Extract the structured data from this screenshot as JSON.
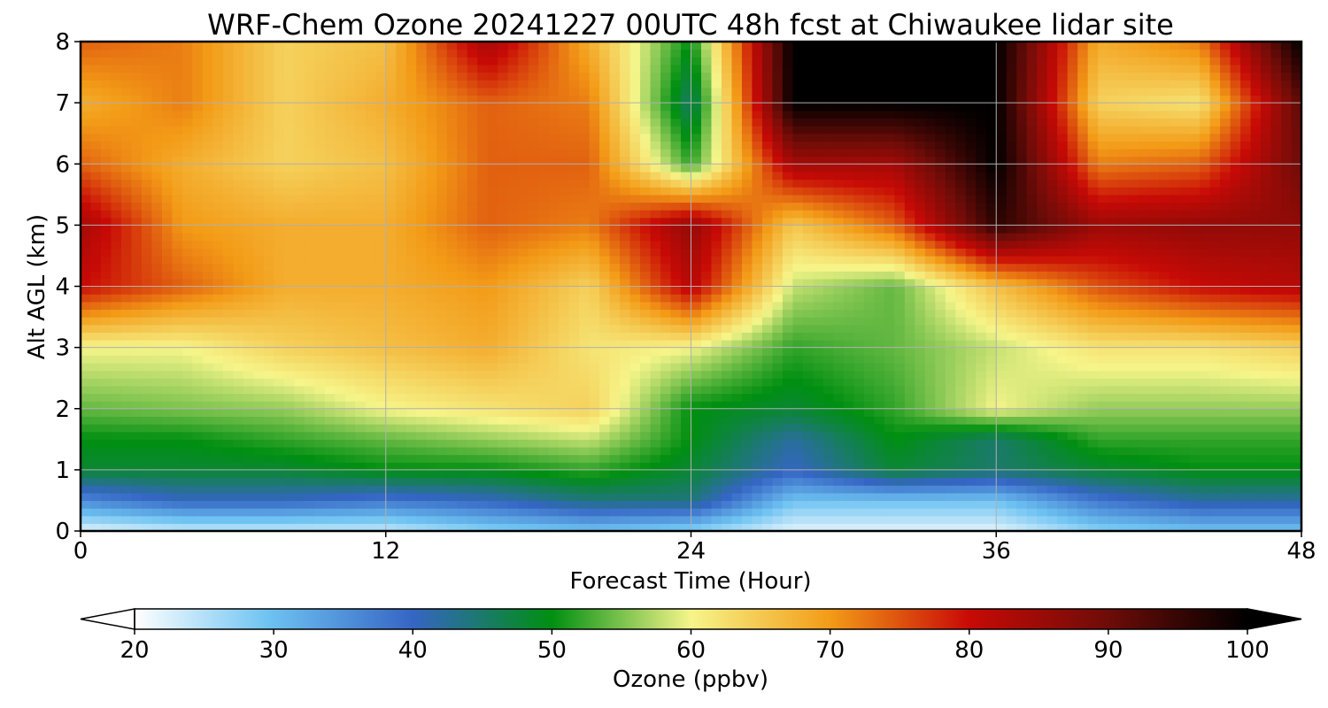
{
  "chart_data": {
    "type": "heatmap",
    "title": "WRF-Chem Ozone  20241227 00UTC 48h fcst at Chiwaukee lidar site",
    "xlabel": "Forecast Time (Hour)",
    "ylabel": "Alt AGL (km)",
    "xlim": [
      0,
      48
    ],
    "ylim": [
      0,
      8
    ],
    "x_ticks": [
      "0",
      "12",
      "24",
      "36",
      "48"
    ],
    "y_ticks": [
      "0",
      "1",
      "2",
      "3",
      "4",
      "5",
      "6",
      "7",
      "8"
    ],
    "grid": true,
    "x": [
      0,
      4,
      8,
      12,
      16,
      20,
      24,
      28,
      32,
      36,
      40,
      44,
      48
    ],
    "y": [
      0,
      0.5,
      1,
      1.5,
      2,
      3,
      4,
      5,
      6,
      7,
      8
    ],
    "z_units": "ppbv",
    "z": [
      [
        22,
        24,
        24,
        24,
        28,
        30,
        28,
        22,
        22,
        22,
        28,
        30,
        30
      ],
      [
        36,
        40,
        40,
        38,
        40,
        44,
        44,
        30,
        30,
        30,
        38,
        42,
        42
      ],
      [
        48,
        48,
        48,
        50,
        50,
        52,
        48,
        40,
        48,
        45,
        48,
        50,
        50
      ],
      [
        50,
        50,
        52,
        54,
        56,
        58,
        50,
        42,
        50,
        45,
        52,
        52,
        52
      ],
      [
        54,
        55,
        56,
        60,
        62,
        64,
        50,
        48,
        52,
        60,
        56,
        56,
        56
      ],
      [
        60,
        60,
        64,
        66,
        68,
        62,
        60,
        52,
        54,
        58,
        62,
        62,
        64
      ],
      [
        80,
        74,
        68,
        68,
        70,
        64,
        82,
        58,
        54,
        66,
        75,
        80,
        82
      ],
      [
        84,
        70,
        68,
        68,
        74,
        72,
        86,
        65,
        74,
        96,
        85,
        86,
        86
      ],
      [
        74,
        68,
        64,
        66,
        74,
        74,
        52,
        84,
        84,
        100,
        72,
        74,
        90
      ],
      [
        68,
        72,
        64,
        68,
        74,
        72,
        45,
        100,
        100,
        100,
        64,
        62,
        92
      ],
      [
        74,
        72,
        64,
        66,
        84,
        68,
        50,
        100,
        100,
        100,
        68,
        72,
        100
      ]
    ],
    "colorbar": {
      "label": "Ozone  (ppbv)",
      "min": 20,
      "max": 100,
      "ticks": [
        "20",
        "30",
        "40",
        "50",
        "60",
        "70",
        "80",
        "90",
        "100"
      ],
      "extend": "both",
      "colors": [
        "#ffffff",
        "#6ec3f2",
        "#3565c4",
        "#008f11",
        "#f6f58a",
        "#f39b17",
        "#c80a06",
        "#6e0c08",
        "#000000"
      ]
    }
  }
}
